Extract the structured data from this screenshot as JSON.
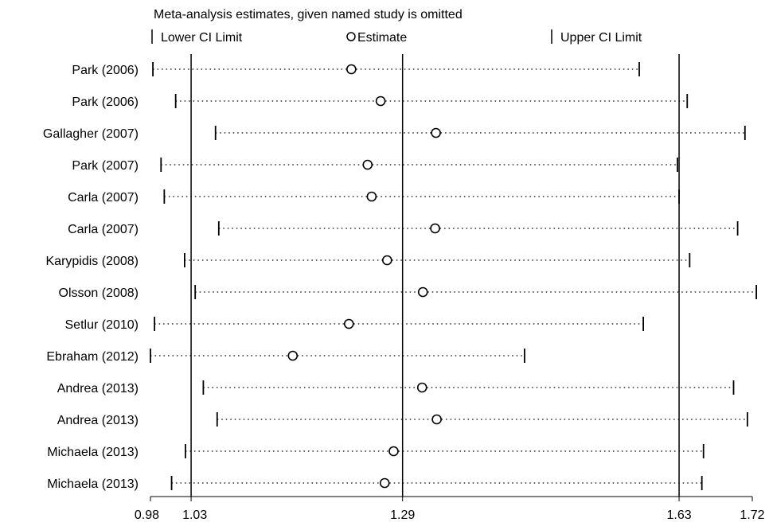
{
  "chart_data": {
    "type": "forest",
    "title": "Meta-analysis estimates, given named study is omitted",
    "legend": {
      "lower": "Lower CI Limit",
      "estimate": "Estimate",
      "upper": "Upper CI Limit"
    },
    "xlim": [
      0.98,
      1.72
    ],
    "xticks": [
      0.98,
      1.03,
      1.29,
      1.63,
      1.72
    ],
    "xtick_labels": [
      "0.98",
      "1.03",
      "1.29",
      "1.63",
      "1.72"
    ],
    "reference_lines": [
      1.03,
      1.29,
      1.63
    ],
    "studies": [
      {
        "label": "Park (2006)",
        "lower": 0.983,
        "estimate": 1.227,
        "upper": 1.581
      },
      {
        "label": "Park (2006)",
        "lower": 1.011,
        "estimate": 1.263,
        "upper": 1.64
      },
      {
        "label": "Gallagher (2007)",
        "lower": 1.06,
        "estimate": 1.331,
        "upper": 1.711
      },
      {
        "label": "Park (2007)",
        "lower": 0.993,
        "estimate": 1.247,
        "upper": 1.628
      },
      {
        "label": "Carla (2007)",
        "lower": 0.997,
        "estimate": 1.252,
        "upper": 1.63
      },
      {
        "label": "Carla (2007)",
        "lower": 1.064,
        "estimate": 1.33,
        "upper": 1.702
      },
      {
        "label": "Karypidis (2008)",
        "lower": 1.022,
        "estimate": 1.271,
        "upper": 1.643
      },
      {
        "label": "Olsson (2008)",
        "lower": 1.035,
        "estimate": 1.315,
        "upper": 1.725
      },
      {
        "label": "Setlur (2010)",
        "lower": 0.985,
        "estimate": 1.224,
        "upper": 1.586
      },
      {
        "label": "Ebraham (2012)",
        "lower": 0.98,
        "estimate": 1.155,
        "upper": 1.44
      },
      {
        "label": "Andrea (2013)",
        "lower": 1.045,
        "estimate": 1.314,
        "upper": 1.697
      },
      {
        "label": "Andrea (2013)",
        "lower": 1.062,
        "estimate": 1.332,
        "upper": 1.714
      },
      {
        "label": "Michaela (2013)",
        "lower": 1.023,
        "estimate": 1.279,
        "upper": 1.66
      },
      {
        "label": "Michaela (2013)",
        "lower": 1.006,
        "estimate": 1.268,
        "upper": 1.658
      }
    ]
  }
}
